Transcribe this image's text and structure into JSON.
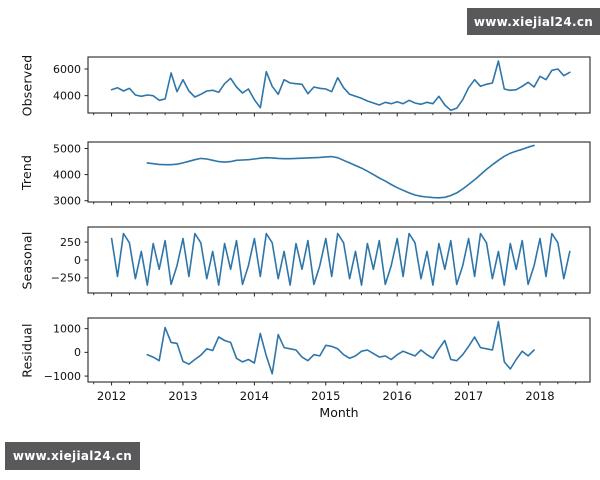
{
  "watermarks": {
    "top": {
      "text": "www.xiejial24.cn"
    },
    "bottom": {
      "text": "www.xiejial24.cn"
    },
    "bg_color": "#59595c",
    "fg_color": "#ffffff"
  },
  "style": {
    "line_color": "#2e76a9",
    "axis_color": "#262626",
    "tick_text_color": "#111111",
    "panel_bg": "#ffffff"
  },
  "shared_x": {
    "label": "Month",
    "ticks": [
      2012,
      2013,
      2014,
      2015,
      2016,
      2017,
      2018
    ],
    "lim": [
      2011.67,
      2018.7
    ],
    "minor_step": 0.25
  },
  "chart_data": [
    {
      "type": "line",
      "ylabel": "Observed",
      "yticks": [
        4000,
        6000
      ],
      "ylim": [
        2700,
        6900
      ],
      "x_start": 2012.0,
      "x_step": 0.0833333,
      "values": [
        4450,
        4600,
        4350,
        4550,
        4050,
        3950,
        4050,
        4000,
        3650,
        3750,
        5700,
        4300,
        5200,
        4350,
        3900,
        4100,
        4350,
        4400,
        4250,
        4900,
        5300,
        4650,
        4200,
        4500,
        3700,
        3100,
        5800,
        4700,
        4100,
        5200,
        4950,
        4900,
        4850,
        4150,
        4650,
        4550,
        4500,
        4300,
        5350,
        4600,
        4100,
        3950,
        3800,
        3600,
        3450,
        3300,
        3500,
        3400,
        3550,
        3400,
        3650,
        3450,
        3350,
        3500,
        3400,
        3950,
        3300,
        2900,
        3050,
        3700,
        4600,
        5200,
        4700,
        4850,
        4950,
        6600,
        4500,
        4400,
        4450,
        4700,
        5000,
        4650,
        5450,
        5200,
        5900,
        6000,
        5500,
        5750
      ]
    },
    {
      "type": "line",
      "ylabel": "Trend",
      "yticks": [
        3000,
        4000,
        5000
      ],
      "ylim": [
        2950,
        5250
      ],
      "x_start": 2012.5,
      "x_step": 0.0833333,
      "values": [
        4450,
        4420,
        4390,
        4380,
        4380,
        4400,
        4450,
        4510,
        4570,
        4620,
        4600,
        4550,
        4500,
        4480,
        4500,
        4550,
        4560,
        4570,
        4600,
        4630,
        4650,
        4640,
        4620,
        4610,
        4610,
        4620,
        4630,
        4640,
        4650,
        4660,
        4680,
        4690,
        4650,
        4550,
        4450,
        4350,
        4250,
        4130,
        4000,
        3870,
        3750,
        3620,
        3500,
        3400,
        3300,
        3220,
        3170,
        3140,
        3120,
        3110,
        3130,
        3200,
        3300,
        3450,
        3620,
        3800,
        4000,
        4200,
        4380,
        4550,
        4700,
        4820,
        4900,
        4970,
        5050,
        5120
      ]
    },
    {
      "type": "line",
      "ylabel": "Seasonal",
      "yticks": [
        -250,
        0,
        250
      ],
      "ylim": [
        -460,
        460
      ],
      "x_start": 2012.0,
      "x_step": 0.0833333,
      "values": [
        300,
        -230,
        370,
        240,
        -260,
        120,
        -350,
        230,
        -130,
        270,
        -340,
        -80,
        300,
        -230,
        370,
        240,
        -260,
        120,
        -350,
        230,
        -130,
        270,
        -340,
        -80,
        300,
        -230,
        370,
        240,
        -260,
        120,
        -350,
        230,
        -130,
        270,
        -340,
        -80,
        300,
        -230,
        370,
        240,
        -260,
        120,
        -350,
        230,
        -130,
        270,
        -340,
        -80,
        300,
        -230,
        370,
        240,
        -260,
        120,
        -350,
        230,
        -130,
        270,
        -340,
        -80,
        300,
        -230,
        370,
        240,
        -260,
        120,
        -350,
        230,
        -130,
        270,
        -340,
        -80,
        300,
        -230,
        370,
        240,
        -260,
        120
      ]
    },
    {
      "type": "line",
      "ylabel": "Residual",
      "yticks": [
        -1000,
        0,
        1000
      ],
      "ylim": [
        -1250,
        1450
      ],
      "x_start": 2012.5,
      "x_step": 0.0833333,
      "values": [
        -100,
        -200,
        -350,
        1050,
        420,
        380,
        -380,
        -500,
        -300,
        -120,
        150,
        80,
        650,
        500,
        420,
        -250,
        -400,
        -300,
        -450,
        800,
        -150,
        -900,
        750,
        200,
        150,
        100,
        -200,
        -350,
        -100,
        -150,
        300,
        250,
        150,
        -100,
        -250,
        -150,
        50,
        100,
        -50,
        -200,
        -150,
        -300,
        -100,
        50,
        -50,
        -150,
        100,
        -100,
        -250,
        150,
        500,
        -300,
        -350,
        -100,
        250,
        650,
        200,
        150,
        100,
        1300,
        -400,
        -700,
        -300,
        50,
        -150,
        100
      ]
    }
  ]
}
